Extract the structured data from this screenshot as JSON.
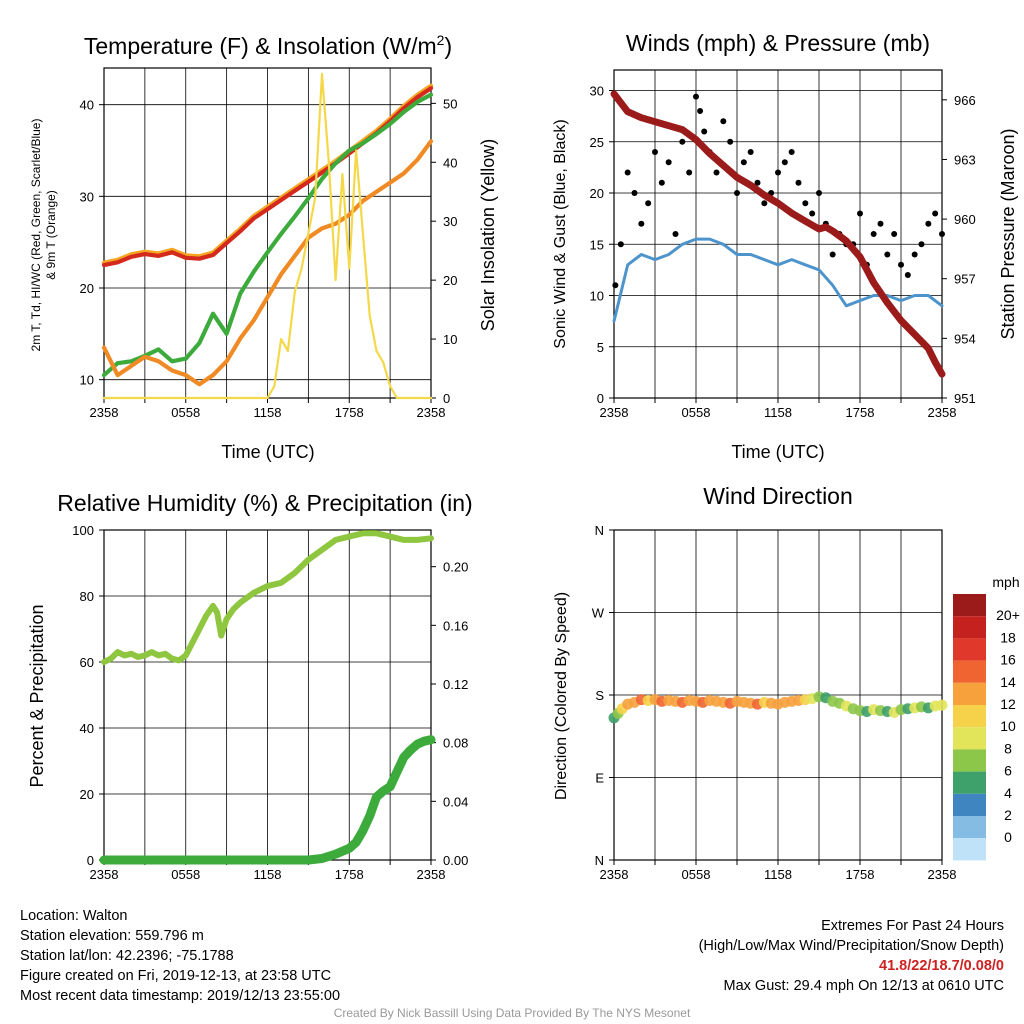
{
  "figure": {
    "credit": "Created By Nick Bassill Using Data Provided By The NYS Mesonet"
  },
  "colors": {
    "temperature": "#d42a1e",
    "heat_index_wind_chill": "#f08a24",
    "dewpoint": "#3cab3c",
    "nine_m_temperature": "#f5a623",
    "solar": "#f5d84a",
    "sonic_wind": "#4d94cc",
    "gust": "#000000",
    "pressure": "#9b1a1a",
    "rh": "#8ec63f",
    "precip": "#3cab3c"
  },
  "chart_data": [
    {
      "id": "temperature",
      "type": "line",
      "title": "Temperature (F) & Insolation (W/m²)",
      "title_main": "Temperature (F) & Insolation (W/m",
      "title_sup": "2",
      "title_end": ")",
      "xlabel": "Time (UTC)",
      "ylabel_left_line1": "2m T, Td, HI/WC (Red, Green, Scarlet/Blue)",
      "ylabel_left_line2": "& 9m T (Orange)",
      "ylabel_right": "Solar Insolation (Yellow)",
      "x_ticklabels": [
        "2358",
        "0558",
        "1158",
        "1758",
        "2358"
      ],
      "ylim_left": [
        8,
        44
      ],
      "yticks_left": [
        10,
        20,
        30,
        40
      ],
      "ylim_right": [
        0,
        56
      ],
      "yticks_right": [
        0,
        10,
        20,
        30,
        40,
        50
      ],
      "grid": true,
      "series": [
        {
          "key": "temperature",
          "axis": "left",
          "x": [
            0,
            1,
            2,
            3,
            4,
            5,
            6,
            7,
            8,
            9,
            10,
            11,
            12,
            13,
            14,
            15,
            16,
            17,
            18,
            19,
            20,
            21,
            22,
            23,
            24
          ],
          "values": [
            22.5,
            22.8,
            23.4,
            23.7,
            23.5,
            23.9,
            23.3,
            23.2,
            23.6,
            24.9,
            26.2,
            27.6,
            28.6,
            29.6,
            30.6,
            31.6,
            32.6,
            33.6,
            34.7,
            35.8,
            36.9,
            38.2,
            39.6,
            40.8,
            41.8
          ]
        },
        {
          "key": "dewpoint",
          "axis": "left",
          "x": [
            0,
            1,
            2,
            3,
            4,
            5,
            6,
            7,
            8,
            9,
            10,
            11,
            12,
            13,
            14,
            15,
            16,
            17,
            18,
            19,
            20,
            21,
            22,
            23,
            24
          ],
          "values": [
            10.5,
            11.8,
            12.0,
            12.6,
            13.3,
            12.0,
            12.3,
            14.0,
            17.2,
            15.0,
            19.4,
            21.8,
            23.9,
            25.9,
            27.8,
            29.8,
            31.9,
            33.6,
            35.0,
            35.8,
            36.8,
            37.9,
            39.2,
            40.3,
            41.1
          ]
        },
        {
          "key": "heat_index_wind_chill",
          "axis": "left",
          "x": [
            0,
            1,
            2,
            3,
            4,
            5,
            6,
            7,
            8,
            9,
            10,
            11,
            12,
            13,
            14,
            15,
            16,
            17,
            18,
            19,
            20,
            21,
            22,
            23,
            24
          ],
          "values": [
            13.5,
            10.5,
            11.5,
            12.5,
            12.0,
            11.0,
            10.5,
            9.5,
            10.5,
            12.0,
            14.5,
            16.5,
            19.0,
            21.5,
            23.5,
            25.5,
            26.5,
            27.0,
            28.0,
            29.5,
            30.5,
            31.5,
            32.5,
            34.0,
            36.0
          ]
        },
        {
          "key": "solar",
          "axis": "right",
          "x": [
            0,
            12,
            12.5,
            13,
            13.5,
            14,
            14.5,
            15,
            15.5,
            16,
            16.5,
            17,
            17.5,
            18,
            18.5,
            19,
            19.5,
            20,
            20.5,
            21,
            21.5,
            22,
            24
          ],
          "values": [
            0,
            0,
            2,
            10,
            8,
            18,
            22,
            28,
            34,
            55,
            40,
            20,
            38,
            22,
            42,
            28,
            14,
            8,
            6,
            2,
            0,
            0,
            0
          ]
        }
      ]
    },
    {
      "id": "winds",
      "type": "line",
      "title": "Winds (mph) & Pressure (mb)",
      "xlabel": "Time (UTC)",
      "ylabel_left": "Sonic Wind & Gust (Blue, Black)",
      "ylabel_right": "Station Pressure (Maroon)",
      "x_ticklabels": [
        "2358",
        "0558",
        "1158",
        "1758",
        "2358"
      ],
      "ylim_left": [
        0,
        32
      ],
      "yticks_left": [
        0,
        5,
        10,
        15,
        20,
        25,
        30
      ],
      "ylim_right": [
        951,
        967.5
      ],
      "yticks_right": [
        951,
        954,
        957,
        960,
        963,
        966
      ],
      "grid": true,
      "series": [
        {
          "key": "sonic_wind",
          "axis": "left",
          "x": [
            0,
            1,
            2,
            3,
            4,
            5,
            6,
            7,
            8,
            9,
            10,
            11,
            12,
            13,
            14,
            15,
            16,
            17,
            18,
            19,
            20,
            21,
            22,
            23,
            24
          ],
          "values": [
            7.5,
            13.0,
            14.0,
            13.5,
            14.0,
            15.0,
            15.5,
            15.5,
            15.0,
            14.0,
            14.0,
            13.5,
            13.0,
            13.5,
            13.0,
            12.5,
            11.0,
            9.0,
            9.5,
            10.0,
            10.0,
            9.5,
            10.0,
            10.0,
            9.0
          ]
        },
        {
          "key": "gust",
          "axis": "left",
          "type": "scatter",
          "x": [
            0.1,
            0.5,
            1,
            1.5,
            2,
            2.5,
            3,
            3.5,
            4,
            4.5,
            5,
            5.5,
            6,
            6.3,
            6.6,
            7,
            7.5,
            8,
            8.5,
            9,
            9.5,
            10,
            10.5,
            11,
            11.5,
            12,
            12.5,
            13,
            13.5,
            14,
            14.5,
            15,
            15.5,
            16,
            16.5,
            17,
            17.5,
            18,
            18.5,
            19,
            19.5,
            20,
            20.5,
            21,
            21.5,
            22,
            22.5,
            23,
            23.5,
            24
          ],
          "values": [
            11,
            15,
            22,
            20,
            17,
            19,
            24,
            21,
            23,
            16,
            25,
            22,
            29.4,
            28,
            26,
            24,
            22,
            27,
            25,
            20,
            23,
            24,
            21,
            19,
            20,
            22,
            23,
            24,
            21,
            19,
            18,
            20,
            17,
            14,
            16,
            15,
            15,
            18,
            13,
            16,
            17,
            14,
            16,
            13,
            12,
            14,
            15,
            17,
            18,
            16
          ]
        },
        {
          "key": "pressure",
          "axis": "right",
          "x": [
            0,
            1,
            2,
            3,
            4,
            5,
            6,
            7,
            8,
            9,
            10,
            11,
            12,
            13,
            14,
            15,
            15.5,
            16,
            17,
            18,
            19,
            20,
            21,
            22,
            23,
            23.5,
            24
          ],
          "values": [
            966.3,
            965.4,
            965.1,
            964.9,
            964.7,
            964.5,
            964.0,
            963.3,
            962.7,
            962.1,
            961.7,
            961.2,
            960.8,
            960.3,
            959.9,
            959.5,
            959.6,
            959.4,
            958.9,
            958.1,
            956.8,
            955.8,
            954.9,
            954.2,
            953.5,
            952.8,
            952.2
          ]
        }
      ]
    },
    {
      "id": "humidity",
      "type": "line",
      "title": "Relative Humidity (%) & Precipitation (in)",
      "xlabel": "",
      "ylabel_left": "Percent & Precipitation",
      "x_ticklabels": [
        "2358",
        "0558",
        "1158",
        "1758",
        "2358"
      ],
      "ylim_left": [
        0,
        100
      ],
      "yticks_left": [
        0,
        20,
        40,
        60,
        80,
        100
      ],
      "ylim_right": [
        0,
        0.225
      ],
      "yticks_right": [
        0.0,
        0.04,
        0.08,
        0.12,
        0.16,
        0.2
      ],
      "ytick_right_labels": [
        "0.00",
        "0.04",
        "0.08",
        "0.12",
        "0.16",
        "0.20"
      ],
      "grid": true,
      "series": [
        {
          "key": "rh",
          "axis": "left",
          "x": [
            0,
            0.5,
            1,
            1.5,
            2,
            2.5,
            3,
            3.5,
            4,
            4.5,
            5,
            5.5,
            6,
            6.5,
            7,
            7.5,
            8,
            8.3,
            8.6,
            9,
            9.5,
            10,
            11,
            12,
            13,
            14,
            15,
            16,
            17,
            18,
            19,
            20,
            21,
            22,
            23,
            24
          ],
          "values": [
            60,
            61,
            63,
            62,
            62.5,
            61.5,
            62,
            63,
            62,
            62.5,
            61,
            60.5,
            62,
            66,
            70,
            74,
            77,
            75,
            68,
            73,
            76,
            78,
            81,
            83,
            84,
            87,
            91,
            94,
            97,
            98,
            99,
            99,
            98,
            97,
            97,
            97.5
          ]
        },
        {
          "key": "precip",
          "axis": "right",
          "x": [
            0,
            6,
            12,
            15,
            16,
            17,
            18,
            18.5,
            19,
            19.5,
            20,
            20.5,
            21,
            21.5,
            22,
            22.5,
            23,
            23.5,
            24
          ],
          "values": [
            0,
            0,
            0,
            0,
            0.001,
            0.004,
            0.008,
            0.012,
            0.02,
            0.03,
            0.043,
            0.047,
            0.05,
            0.06,
            0.07,
            0.075,
            0.079,
            0.081,
            0.082
          ]
        }
      ]
    },
    {
      "id": "wind_direction",
      "type": "scatter",
      "title": "Wind Direction",
      "xlabel": "",
      "ylabel_left": "Direction (Colored By Speed)",
      "x_ticklabels": [
        "2358",
        "0558",
        "1158",
        "1758",
        "2358"
      ],
      "ylim_left": [
        0,
        360
      ],
      "yticks_left": [
        0,
        90,
        180,
        270,
        360
      ],
      "ytick_left_labels": [
        "N",
        "E",
        "S",
        "W",
        "N"
      ],
      "grid": true,
      "colorbar_title": "mph",
      "colorbar_labels": [
        "20+",
        "18",
        "16",
        "14",
        "12",
        "10",
        "8",
        "6",
        "4",
        "2",
        "0"
      ],
      "colorbar_colors": [
        "#9b1a1a",
        "#c4211f",
        "#e0382a",
        "#f06432",
        "#f6a13c",
        "#f6d24a",
        "#e2e45a",
        "#8dc74a",
        "#3ea06a",
        "#3f86c0",
        "#84bce4",
        "#bfe2f8"
      ],
      "x": [
        0,
        0.3,
        0.6,
        1,
        1.5,
        2,
        2.5,
        3,
        3.5,
        4,
        4.5,
        5,
        5.5,
        6,
        6.5,
        7,
        7.5,
        8,
        8.5,
        9,
        9.5,
        10,
        10.5,
        11,
        11.5,
        12,
        12.5,
        13,
        13.5,
        14,
        14.5,
        15,
        15.5,
        16,
        16.5,
        17,
        17.5,
        18,
        18.5,
        19,
        19.5,
        20,
        20.5,
        21,
        21.5,
        22,
        22.5,
        23,
        23.5,
        24
      ],
      "values": [
        155,
        160,
        165,
        170,
        172,
        175,
        174,
        175,
        173,
        174,
        173,
        172,
        174,
        173,
        172,
        174,
        173,
        172,
        171,
        173,
        172,
        171,
        170,
        172,
        171,
        170,
        172,
        173,
        174,
        175,
        176,
        178,
        177,
        173,
        171,
        168,
        165,
        163,
        162,
        164,
        163,
        162,
        161,
        164,
        165,
        166,
        167,
        166,
        168,
        169
      ],
      "speeds": [
        6,
        8,
        12,
        14,
        14,
        16,
        12,
        14,
        16,
        14,
        15,
        16,
        14,
        15,
        16,
        14,
        15,
        14,
        16,
        15,
        14,
        15,
        16,
        12,
        14,
        15,
        14,
        15,
        14,
        12,
        10,
        8,
        6,
        8,
        8,
        10,
        8,
        8,
        6,
        10,
        8,
        6,
        10,
        8,
        6,
        10,
        8,
        6,
        10,
        10
      ]
    }
  ],
  "info": {
    "location": "Location: Walton",
    "elevation": "Station elevation: 559.796 m",
    "latlon": "Station lat/lon: 42.2396; -75.1788",
    "created": "Figure created on Fri, 2019-12-13, at 23:58 UTC",
    "recent": "Most recent data timestamp: 2019/12/13 23:55:00"
  },
  "extremes": {
    "title": "Extremes For Past 24 Hours",
    "subtitle": "(High/Low/Max Wind/Precipitation/Snow Depth)",
    "values": "41.8/22/18.7/0.08/0",
    "max_gust": "Max Gust: 29.4 mph On 12/13 at 0610 UTC"
  }
}
